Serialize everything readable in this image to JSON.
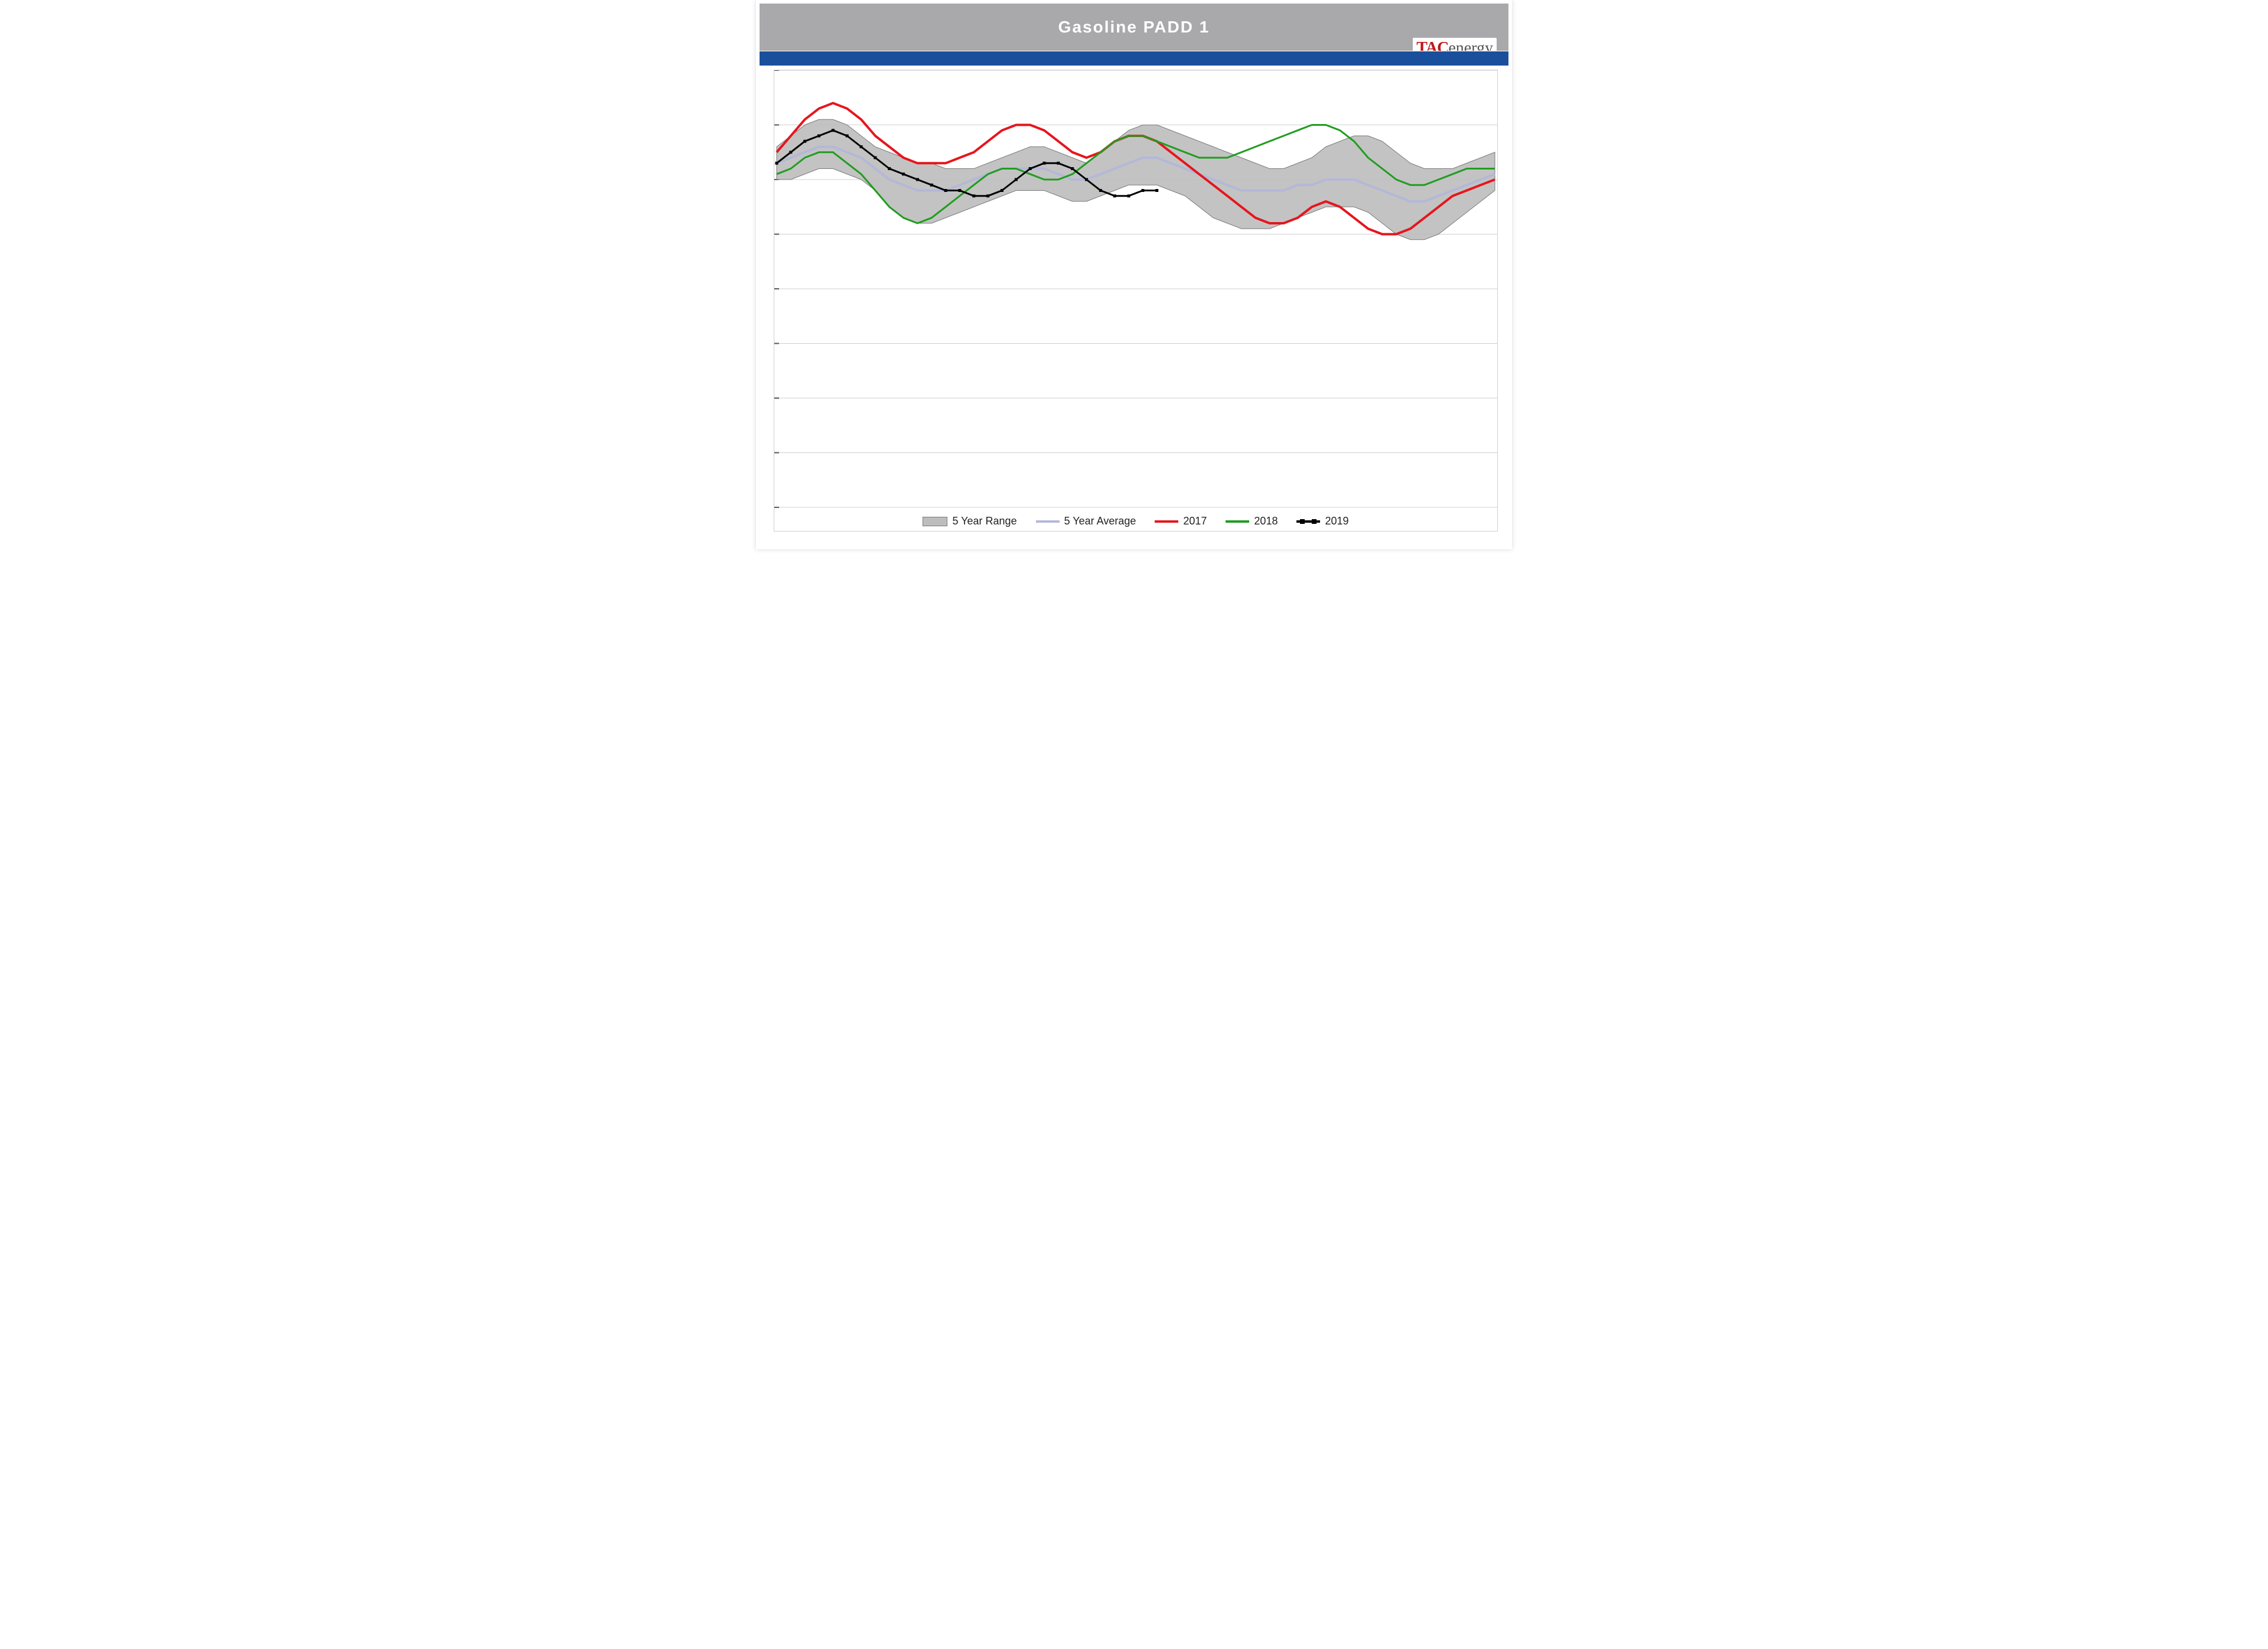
{
  "title": "Gasoline  PADD  1",
  "logo": {
    "tac": "TAC",
    "energy": "energy"
  },
  "colors": {
    "title_bar": "#a9a9ab",
    "title_text": "#ffffff",
    "blue_band": "#1a4f9c",
    "plot_bg": "#ffffff",
    "grid": "#cfcfcf",
    "range_fill": "#bdbdbd",
    "range_stroke": "#7a7a7a",
    "avg": "#b3b8d9",
    "s2017": "#e6151c",
    "s2018": "#1f9d1f",
    "s2019": "#000000"
  },
  "chart": {
    "type": "line",
    "x_count": 52,
    "ylim": [
      0,
      80
    ],
    "yticks": [
      0,
      10,
      20,
      30,
      40,
      50,
      60,
      70,
      80
    ],
    "line_width_thick": 4,
    "line_width_thin": 3,
    "marker_size": 5,
    "range_high": [
      66,
      68,
      70,
      71,
      71,
      70,
      68,
      66,
      65,
      64,
      63,
      63,
      62,
      62,
      62,
      63,
      64,
      65,
      66,
      66,
      65,
      64,
      63,
      65,
      67,
      69,
      70,
      70,
      69,
      68,
      67,
      66,
      65,
      64,
      63,
      62,
      62,
      63,
      64,
      66,
      67,
      68,
      68,
      67,
      65,
      63,
      62,
      62,
      62,
      63,
      64,
      65
    ],
    "range_low": [
      60,
      60,
      61,
      62,
      62,
      61,
      60,
      58,
      55,
      53,
      52,
      52,
      53,
      54,
      55,
      56,
      57,
      58,
      58,
      58,
      57,
      56,
      56,
      57,
      58,
      59,
      59,
      59,
      58,
      57,
      55,
      53,
      52,
      51,
      51,
      51,
      52,
      53,
      54,
      55,
      55,
      55,
      54,
      52,
      50,
      49,
      49,
      50,
      52,
      54,
      56,
      58
    ],
    "avg": [
      63,
      64,
      65,
      66,
      66,
      65,
      64,
      62,
      60,
      59,
      58,
      58,
      58,
      59,
      60,
      61,
      62,
      62,
      62,
      62,
      61,
      60,
      60,
      61,
      62,
      63,
      64,
      64,
      63,
      62,
      61,
      60,
      59,
      58,
      58,
      58,
      58,
      59,
      59,
      60,
      60,
      60,
      59,
      58,
      57,
      56,
      56,
      57,
      58,
      59,
      60,
      61
    ],
    "s2017": [
      65,
      68,
      71,
      73,
      74,
      73,
      71,
      68,
      66,
      64,
      63,
      63,
      63,
      64,
      65,
      67,
      69,
      70,
      70,
      69,
      67,
      65,
      64,
      65,
      67,
      68,
      68,
      67,
      65,
      63,
      61,
      59,
      57,
      55,
      53,
      52,
      52,
      53,
      55,
      56,
      55,
      53,
      51,
      50,
      50,
      51,
      53,
      55,
      57,
      58,
      59,
      60
    ],
    "s2018": [
      61,
      62,
      64,
      65,
      65,
      63,
      61,
      58,
      55,
      53,
      52,
      53,
      55,
      57,
      59,
      61,
      62,
      62,
      61,
      60,
      60,
      61,
      63,
      65,
      67,
      68,
      68,
      67,
      66,
      65,
      64,
      64,
      64,
      65,
      66,
      67,
      68,
      69,
      70,
      70,
      69,
      67,
      64,
      62,
      60,
      59,
      59,
      60,
      61,
      62,
      62,
      62
    ],
    "s2019": [
      63,
      65,
      67,
      68,
      69,
      68,
      66,
      64,
      62,
      61,
      60,
      59,
      58,
      58,
      57,
      57,
      58,
      60,
      62,
      63,
      63,
      62,
      60,
      58,
      57,
      57,
      58,
      58
    ],
    "legend": [
      {
        "key": "range",
        "label": "5 Year Range"
      },
      {
        "key": "avg",
        "label": "5 Year Average"
      },
      {
        "key": "s2017",
        "label": "2017"
      },
      {
        "key": "s2018",
        "label": "2018"
      },
      {
        "key": "s2019",
        "label": "2019"
      }
    ]
  }
}
